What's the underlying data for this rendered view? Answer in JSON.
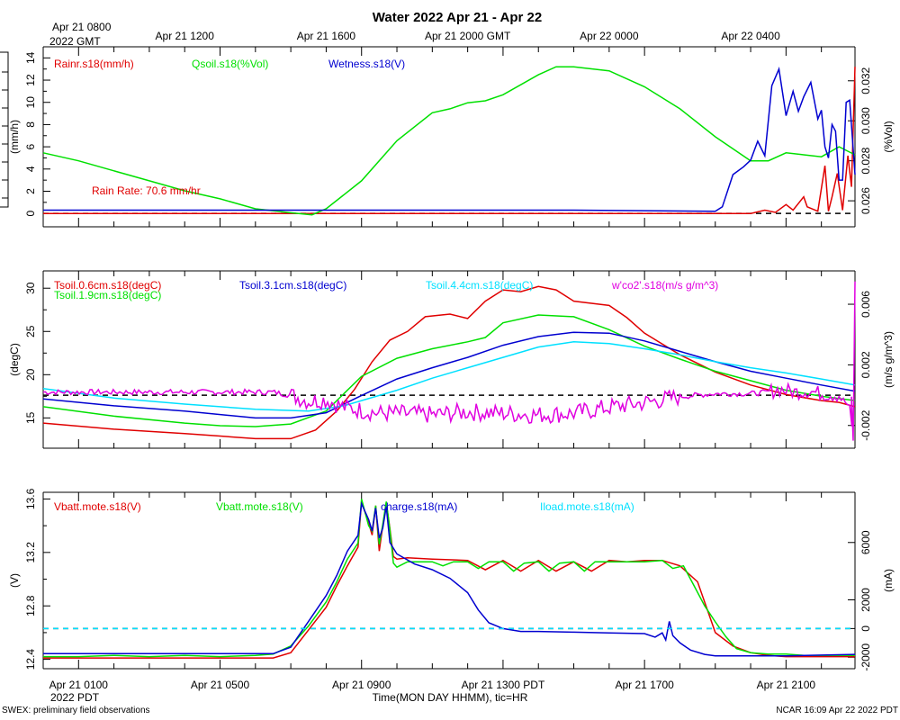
{
  "title": "Water 2022 Apr 21 - Apr 22",
  "footer": {
    "left": "SWEX: preliminary field observations",
    "right": "NCAR 16:09 Apr 22 2022 PDT",
    "xlabel": "Time(MON DAY HHMM), tic=HR"
  },
  "top_axis": {
    "first_line1": "Apr 21 0800",
    "first_line2": "2022 GMT",
    "labels": [
      "Apr 21 1200",
      "Apr 21 1600",
      "Apr 21 2000 GMT",
      "Apr 22 0000",
      "Apr 22 0400"
    ]
  },
  "bottom_axis": {
    "labels": [
      "Apr 21 0100",
      "Apr 21 0500",
      "Apr 21 0900",
      "Apr 21 1300 PDT",
      "Apr 21 1700",
      "Apr 21 2100"
    ],
    "sub": "2022 PDT"
  },
  "colors": {
    "red": "#e00000",
    "green": "#00e000",
    "blue": "#0000d0",
    "cyan": "#00e0ff",
    "magenta": "#e000e0",
    "black": "#000000"
  },
  "chart_data": [
    {
      "id": "water",
      "type": "line",
      "time_range_hours": [
        0,
        22.95
      ],
      "ylabel_left": "(mm/h)",
      "ylabel_right": "(%Vol)",
      "yticks_left": [
        0,
        2,
        4,
        6,
        8,
        10,
        12,
        14
      ],
      "yticks_right": [
        "0.026",
        "0.028",
        "0.030",
        "0.032"
      ],
      "ylim_left": [
        -1.2,
        15
      ],
      "ylim_right": [
        0.0247,
        0.0337
      ],
      "annotation": "Rain Rate: 70.6 mm/hr",
      "series": [
        {
          "name": "Rainr.s18(mm/h)",
          "color": "red",
          "axis": "left",
          "t": [
            0,
            20.0,
            20.4,
            20.7,
            21.0,
            21.2,
            21.5,
            21.6,
            21.9,
            22.1,
            22.2,
            22.3,
            22.45,
            22.6,
            22.75,
            22.85,
            22.95
          ],
          "y": [
            0,
            0,
            0.3,
            0.1,
            0.8,
            0.3,
            1.5,
            0.6,
            0.2,
            4.3,
            0.2,
            1.5,
            3.6,
            0.3,
            5.2,
            2.4,
            13.2
          ]
        },
        {
          "name": "Qsoil.s18(%Vol)",
          "color": "green",
          "axis": "right",
          "t": [
            0,
            1,
            2,
            3,
            4,
            5,
            6,
            7,
            7.6,
            8,
            9,
            10,
            11,
            11.5,
            12,
            12.5,
            13,
            14,
            14.5,
            15,
            16,
            17,
            18,
            19,
            20,
            20.5,
            21,
            21.5,
            22,
            22.5,
            22.95
          ],
          "y": [
            0.0284,
            0.028,
            0.0275,
            0.027,
            0.0265,
            0.0261,
            0.0256,
            0.0254,
            0.0253,
            0.0256,
            0.027,
            0.029,
            0.0304,
            0.0306,
            0.0309,
            0.031,
            0.0313,
            0.0323,
            0.0327,
            0.0327,
            0.0325,
            0.0317,
            0.0306,
            0.0292,
            0.028,
            0.028,
            0.0284,
            0.0283,
            0.0282,
            0.0287,
            0.0283
          ]
        },
        {
          "name": "Wetness.s18(V)",
          "color": "blue",
          "axis": "left",
          "t": [
            0,
            5,
            10,
            15,
            19.0,
            19.2,
            19.5,
            19.8,
            20.0,
            20.2,
            20.4,
            20.6,
            20.8,
            21.0,
            21.2,
            21.35,
            21.5,
            21.7,
            21.9,
            22.0,
            22.1,
            22.2,
            22.3,
            22.4,
            22.5,
            22.6,
            22.7,
            22.8,
            22.95
          ],
          "y": [
            0.3,
            0.3,
            0.3,
            0.3,
            0.2,
            0.6,
            3.5,
            4.2,
            4.8,
            6.5,
            5.2,
            11.5,
            13.0,
            8.8,
            11.0,
            9.2,
            10.5,
            11.8,
            8.5,
            9.3,
            6.0,
            5.0,
            8.0,
            7.4,
            3.0,
            3.0,
            10.0,
            10.2,
            3.5
          ]
        }
      ],
      "reference_line": 0
    },
    {
      "id": "temperature",
      "type": "line",
      "time_range_hours": [
        0,
        22.95
      ],
      "ylabel_left": "(degC)",
      "ylabel_right": "(m/s g/m^3)",
      "yticks_left": [
        15,
        20,
        25,
        30
      ],
      "yticks_right": [
        "-0.002",
        "0.002",
        "0.006"
      ],
      "ylim_left": [
        11.5,
        32
      ],
      "ylim_right": [
        -0.0035,
        0.0082
      ],
      "series": [
        {
          "name": "Tsoil.0.6cm.s18(degC)",
          "color": "red",
          "axis": "left",
          "t": [
            0,
            2,
            4,
            5,
            6,
            7,
            7.7,
            8.3,
            8.8,
            9.3,
            9.8,
            10.3,
            10.8,
            11.5,
            12,
            12.5,
            13,
            13.5,
            14,
            14.5,
            15,
            16,
            16.5,
            17,
            18,
            19,
            20,
            21,
            22,
            22.5,
            22.95
          ],
          "y": [
            14.4,
            13.7,
            13.2,
            12.9,
            12.6,
            12.6,
            13.6,
            15.8,
            18.3,
            21.5,
            24.0,
            25.0,
            26.7,
            27.0,
            26.5,
            28.5,
            29.8,
            29.6,
            30.2,
            29.8,
            28.5,
            28.0,
            26.6,
            24.8,
            22.3,
            20.3,
            18.8,
            17.7,
            17.0,
            16.8,
            16.3
          ]
        },
        {
          "name": "Tsoil.1.9cm.s18(degC)",
          "color": "green",
          "axis": "left",
          "t": [
            0,
            2,
            4,
            5,
            6,
            7,
            8,
            9,
            10,
            11,
            12,
            12.5,
            13,
            14,
            15,
            16,
            17,
            18,
            19,
            20,
            21,
            22,
            22.95
          ],
          "y": [
            16.3,
            15.2,
            14.4,
            14.1,
            14.0,
            14.3,
            15.8,
            19.8,
            21.9,
            23.0,
            23.8,
            24.3,
            26.0,
            26.9,
            26.7,
            25.2,
            23.3,
            21.8,
            20.4,
            19.3,
            18.2,
            17.5,
            17.0
          ]
        },
        {
          "name": "Tsoil.3.1cm.s18(degC)",
          "color": "blue",
          "axis": "left",
          "t": [
            0,
            2,
            4,
            6,
            7,
            8,
            9,
            10,
            11,
            12,
            13,
            14,
            15,
            16,
            17,
            18,
            19,
            20,
            21,
            22,
            22.95
          ],
          "y": [
            17.2,
            16.4,
            15.8,
            15.0,
            15.0,
            15.6,
            17.6,
            19.5,
            20.8,
            22.0,
            23.4,
            24.4,
            24.9,
            24.8,
            23.9,
            22.7,
            21.5,
            20.4,
            19.6,
            18.8,
            18.1
          ]
        },
        {
          "name": "Tsoil.4.4cm.s18(degC)",
          "color": "cyan",
          "axis": "left",
          "t": [
            0,
            2,
            4,
            6,
            7.5,
            8.5,
            10,
            11,
            12,
            13,
            14,
            15,
            16,
            17,
            18,
            19,
            20,
            21,
            22,
            22.95
          ],
          "y": [
            18.4,
            17.3,
            16.6,
            16.0,
            15.8,
            16.4,
            18.2,
            19.6,
            20.8,
            22.0,
            23.2,
            23.8,
            23.6,
            23.0,
            22.3,
            21.5,
            20.8,
            20.2,
            19.5,
            18.8
          ]
        },
        {
          "name": "w'co2'.s18(m/s g/m^3)",
          "color": "magenta",
          "axis": "right",
          "noisy": true,
          "t": [
            0,
            6.5,
            7.0,
            7.5,
            8.0,
            8.5,
            9.0,
            9.5,
            10,
            11,
            12,
            13,
            14,
            15,
            16,
            17,
            18,
            19,
            20,
            20.5,
            20.8,
            21.0,
            21.3,
            21.6,
            22.0,
            22.5,
            22.8,
            22.9,
            22.95
          ],
          "y": [
            0.0002,
            0.0002,
            0.0,
            -0.0004,
            -0.0003,
            -0.0008,
            -0.001,
            -0.0012,
            -0.0012,
            -0.0013,
            -0.0011,
            -0.0012,
            -0.0013,
            -0.0012,
            -0.0008,
            -0.0005,
            -0.0001,
            0.0001,
            0.0001,
            0.0002,
            0.0004,
            0.0003,
            0.0002,
            0.0003,
            0.0001,
            0.0,
            -0.0008,
            -0.003,
            0.0075
          ]
        }
      ],
      "reference_line": 0
    },
    {
      "id": "battery",
      "type": "line",
      "time_range_hours": [
        0,
        22.95
      ],
      "ylabel_left": "(V)",
      "ylabel_right": "(mA)",
      "yticks_left": [
        12.4,
        12.8,
        13.2,
        13.6
      ],
      "yticks_right": [
        -2000,
        0,
        2000,
        6000
      ],
      "ylim_left": [
        12.33,
        13.65
      ],
      "ylim_right": [
        -2800,
        9500
      ],
      "series": [
        {
          "name": "Vbatt.mote.s18(V)",
          "color": "red",
          "axis": "left",
          "t": [
            0,
            5,
            6.5,
            7,
            7.5,
            8,
            8.3,
            8.6,
            8.9,
            9.0,
            9.2,
            9.3,
            9.4,
            9.5,
            9.6,
            9.7,
            9.8,
            9.9,
            10.0,
            10.3,
            11,
            12,
            12.5,
            13,
            13.5,
            14,
            14.5,
            15,
            15.5,
            16,
            16.5,
            17,
            17.5,
            18,
            18.5,
            19,
            19.5,
            20,
            20.5,
            21,
            22,
            22.95
          ],
          "y": [
            12.41,
            12.41,
            12.41,
            12.45,
            12.62,
            12.79,
            12.95,
            13.1,
            13.24,
            13.58,
            13.42,
            13.33,
            13.55,
            13.21,
            13.4,
            13.57,
            13.38,
            13.17,
            13.15,
            13.16,
            13.15,
            13.14,
            13.07,
            13.14,
            13.06,
            13.14,
            13.06,
            13.13,
            13.06,
            13.14,
            13.13,
            13.14,
            13.14,
            13.1,
            12.98,
            12.6,
            12.5,
            12.45,
            12.43,
            12.42,
            12.42,
            12.42
          ]
        },
        {
          "name": "Vbatt.mote.s18(V)",
          "color": "green",
          "axis": "left",
          "t": [
            0,
            1,
            2,
            3,
            4,
            5,
            6,
            6.5,
            7,
            7.5,
            8,
            8.3,
            8.6,
            8.9,
            9.0,
            9.2,
            9.3,
            9.4,
            9.5,
            9.6,
            9.7,
            9.8,
            9.9,
            10.0,
            10.3,
            11,
            11.3,
            11.6,
            12,
            12.3,
            12.6,
            13,
            13.3,
            13.6,
            14,
            14.3,
            14.6,
            15,
            15.3,
            15.6,
            16,
            16.5,
            17,
            17.5,
            17.8,
            18.1,
            18.4,
            18.7,
            19,
            19.3,
            19.6,
            20,
            20.5,
            21,
            21.5,
            22,
            22.95
          ],
          "y": [
            12.42,
            12.42,
            12.43,
            12.42,
            12.43,
            12.42,
            12.43,
            12.44,
            12.5,
            12.65,
            12.83,
            12.98,
            13.15,
            13.27,
            13.6,
            13.4,
            13.36,
            13.55,
            13.26,
            13.41,
            13.58,
            13.37,
            13.12,
            13.09,
            13.13,
            13.13,
            13.1,
            13.13,
            13.13,
            13.08,
            13.13,
            13.13,
            13.06,
            13.12,
            13.13,
            13.06,
            13.12,
            13.13,
            13.06,
            13.13,
            13.13,
            13.13,
            13.13,
            13.14,
            13.08,
            13.1,
            12.95,
            12.8,
            12.68,
            12.57,
            12.48,
            12.45,
            12.44,
            12.44,
            12.43,
            12.43,
            12.43
          ]
        },
        {
          "name": "charge.s18(mA)",
          "color": "blue",
          "axis": "right",
          "t": [
            0,
            5,
            6.5,
            7,
            7.5,
            8,
            8.3,
            8.6,
            8.9,
            9.0,
            9.2,
            9.3,
            9.4,
            9.5,
            9.6,
            9.7,
            9.8,
            10.0,
            10.5,
            11,
            11.5,
            12,
            12.3,
            12.6,
            13,
            13.5,
            14,
            15,
            16,
            17,
            17.3,
            17.5,
            17.6,
            17.7,
            17.8,
            18,
            18.3,
            18.7,
            19,
            19.5,
            20,
            21,
            22,
            22.95
          ],
          "y": [
            -1750,
            -1750,
            -1750,
            -1300,
            500,
            2300,
            3700,
            5400,
            6500,
            8700,
            7600,
            6800,
            8400,
            6300,
            7000,
            8500,
            6000,
            5200,
            4500,
            4100,
            3500,
            2500,
            1300,
            400,
            0,
            -200,
            -200,
            -250,
            -300,
            -350,
            -600,
            -300,
            -800,
            500,
            -500,
            -1000,
            -1500,
            -1800,
            -1900,
            -1900,
            -1900,
            -1900,
            -1850,
            -1800
          ]
        },
        {
          "name": "Iload.mote.s18(mA)",
          "color": "cyan",
          "axis": "right",
          "t": [
            0,
            22.95
          ],
          "y": [
            0,
            0
          ]
        }
      ],
      "reference_line": 0
    }
  ]
}
